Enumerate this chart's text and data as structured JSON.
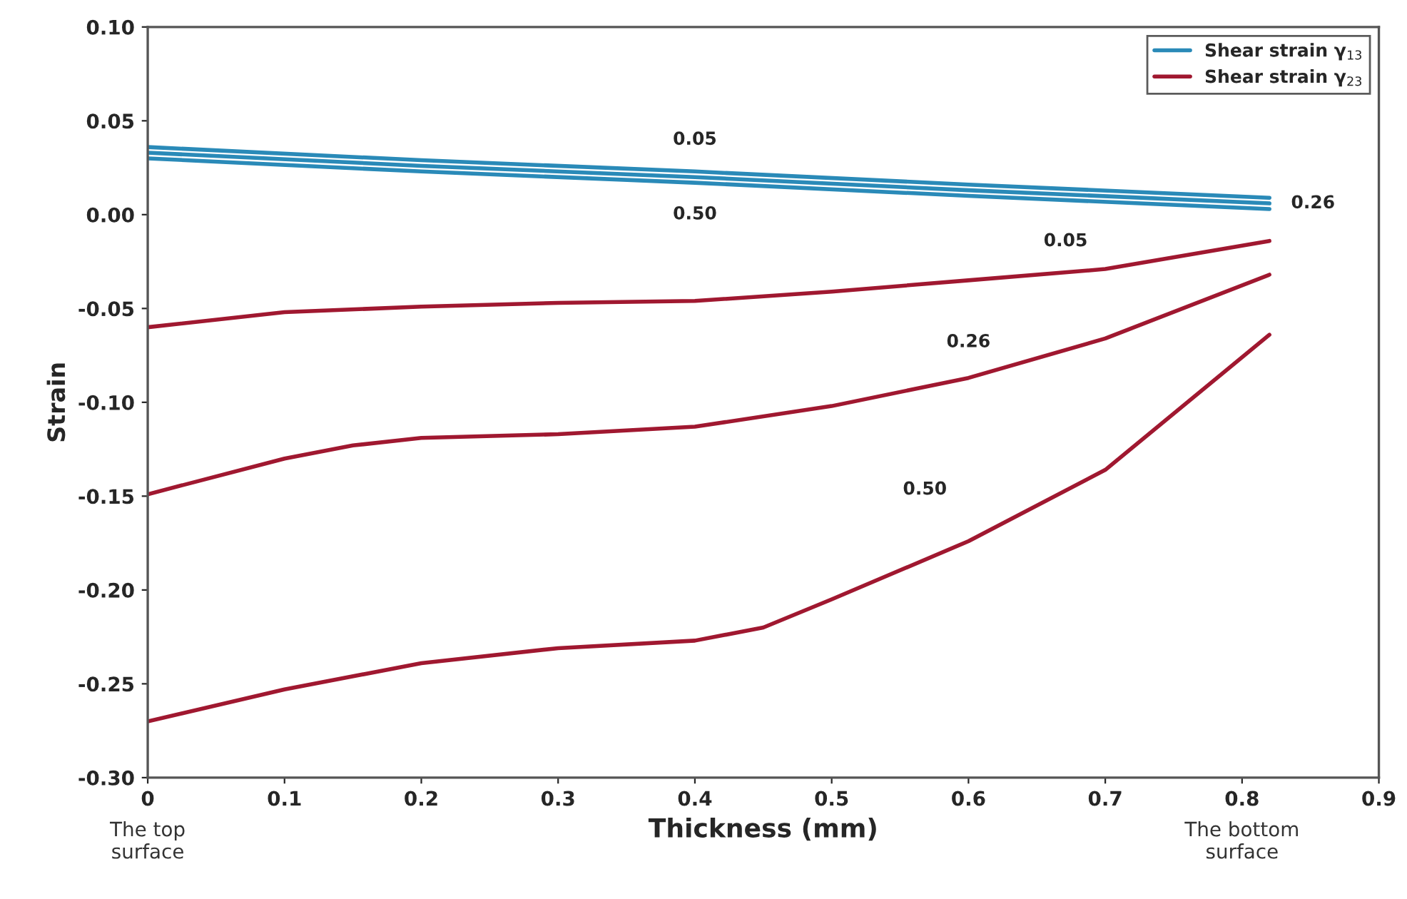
{
  "chart_data": {
    "type": "line",
    "xlabel": "Thickness (mm)",
    "ylabel": "Strain",
    "xlim": [
      0,
      0.9
    ],
    "xticks": [
      0,
      0.1,
      0.2,
      0.3,
      0.4,
      0.5,
      0.6,
      0.7,
      0.8,
      0.9
    ],
    "ylim": [
      -0.3,
      0.1
    ],
    "yticks": [
      {
        "value": -0.3,
        "label": "-0.30"
      },
      {
        "value": -0.25,
        "label": "-0.25"
      },
      {
        "value": -0.2,
        "label": "-0.20"
      },
      {
        "value": -0.15,
        "label": "-0.15"
      },
      {
        "value": -0.1,
        "label": "-0.10"
      },
      {
        "value": -0.05,
        "label": "-0.05"
      },
      {
        "value": 0,
        "label": "0.00"
      },
      {
        "value": 0.05,
        "label": "0.05"
      },
      {
        "value": 0.1,
        "label": "0.10"
      }
    ],
    "grid": false,
    "legend": "top right",
    "marker": "none",
    "line_style": "solid",
    "series": [
      {
        "name": "Shear strain γ$_{13}$",
        "color": "#2a8ab8",
        "x": [
          0,
          0.2,
          0.4,
          0.6,
          0.82
        ],
        "values": [
          0.036,
          0.029,
          0.023,
          0.016,
          0.009
        ]
      },
      {
        "color": "#2a8ab8",
        "x": [
          0,
          0.2,
          0.4,
          0.6,
          0.82
        ],
        "values": [
          0.033,
          0.026,
          0.02,
          0.013,
          0.006
        ]
      },
      {
        "color": "#2a8ab8",
        "x": [
          0,
          0.2,
          0.4,
          0.6,
          0.82
        ],
        "values": [
          0.03,
          0.023,
          0.017,
          0.01,
          0.003
        ]
      },
      {
        "name": "Shear strain γ$_{23}$",
        "color": "#a01830",
        "x": [
          0,
          0.1,
          0.2,
          0.3,
          0.4,
          0.5,
          0.6,
          0.7,
          0.82
        ],
        "values": [
          -0.06,
          -0.052,
          -0.049,
          -0.047,
          -0.046,
          -0.041,
          -0.035,
          -0.029,
          -0.014
        ]
      },
      {
        "color": "#a01830",
        "x": [
          0,
          0.1,
          0.15,
          0.2,
          0.3,
          0.4,
          0.5,
          0.6,
          0.7,
          0.82
        ],
        "values": [
          -0.149,
          -0.13,
          -0.123,
          -0.119,
          -0.117,
          -0.113,
          -0.102,
          -0.087,
          -0.066,
          -0.032
        ]
      },
      {
        "color": "#a01830",
        "x": [
          0,
          0.1,
          0.2,
          0.3,
          0.4,
          0.45,
          0.5,
          0.6,
          0.7,
          0.82
        ],
        "values": [
          -0.27,
          -0.253,
          -0.239,
          -0.231,
          -0.227,
          -0.22,
          -0.205,
          -0.174,
          -0.136,
          -0.064
        ]
      }
    ],
    "annotations": [
      {
        "text": "0.05",
        "x": 0.4,
        "y": 0.023
      },
      {
        "text": "0.50",
        "x": 0.4,
        "y": 0.017
      },
      {
        "text": "0.26",
        "x": 0.82,
        "y": 0.006
      },
      {
        "text": "0.05",
        "x": 0.7,
        "y": -0.029
      },
      {
        "text": "0.26",
        "x": 0.6,
        "y": -0.087
      },
      {
        "text": "0.50",
        "x": 0.6,
        "y": -0.174
      },
      "The top\nsurface",
      "The bottom\nsurface"
    ]
  }
}
